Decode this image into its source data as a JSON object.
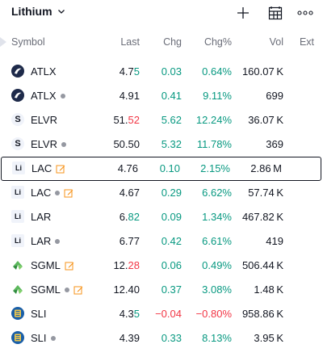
{
  "header": {
    "title": "Lithium",
    "icons": [
      "plus-icon",
      "grid-icon",
      "more-icon"
    ]
  },
  "columns": {
    "symbol": "Symbol",
    "last": "Last",
    "chg": "Chg",
    "chgp": "Chg%",
    "vol": "Vol",
    "ext": "Ext"
  },
  "rows": [
    {
      "symbol": "ATLX",
      "logo": "ATLX",
      "dot": false,
      "edit": false,
      "last_main": "4.7",
      "last_tick": "5",
      "tick": "up",
      "chg": "0.03",
      "chgp": "0.64%",
      "vol": "160.07 K",
      "dir": "pos"
    },
    {
      "symbol": "ATLX",
      "logo": "ATLX",
      "dot": true,
      "edit": false,
      "last_main": "4.91",
      "last_tick": "",
      "tick": "",
      "chg": "0.41",
      "chgp": "9.11%",
      "vol": "699",
      "dir": "pos"
    },
    {
      "symbol": "ELVR",
      "logo": "S",
      "dot": false,
      "edit": false,
      "last_main": "51.",
      "last_tick": "52",
      "tick": "dn",
      "chg": "5.62",
      "chgp": "12.24%",
      "vol": "36.07 K",
      "dir": "pos"
    },
    {
      "symbol": "ELVR",
      "logo": "S",
      "dot": true,
      "edit": false,
      "last_main": "50.50",
      "last_tick": "",
      "tick": "",
      "chg": "5.32",
      "chgp": "11.78%",
      "vol": "369",
      "dir": "pos"
    },
    {
      "symbol": "LAC",
      "logo": "Li",
      "dot": false,
      "edit": true,
      "last_main": "4.76",
      "last_tick": "",
      "tick": "",
      "chg": "0.10",
      "chgp": "2.15%",
      "vol": "2.86 M",
      "dir": "pos",
      "selected": true
    },
    {
      "symbol": "LAC",
      "logo": "Li",
      "dot": true,
      "edit": true,
      "last_main": "4.67",
      "last_tick": "",
      "tick": "",
      "chg": "0.29",
      "chgp": "6.62%",
      "vol": "57.74 K",
      "dir": "pos"
    },
    {
      "symbol": "LAR",
      "logo": "Li",
      "dot": false,
      "edit": false,
      "last_main": "6.",
      "last_tick": "82",
      "tick": "up",
      "chg": "0.09",
      "chgp": "1.34%",
      "vol": "467.82 K",
      "dir": "pos"
    },
    {
      "symbol": "LAR",
      "logo": "Li",
      "dot": true,
      "edit": false,
      "last_main": "6.77",
      "last_tick": "",
      "tick": "",
      "chg": "0.42",
      "chgp": "6.61%",
      "vol": "419",
      "dir": "pos"
    },
    {
      "symbol": "SGML",
      "logo": "SGML",
      "dot": false,
      "edit": true,
      "last_main": "12.",
      "last_tick": "28",
      "tick": "dn",
      "chg": "0.06",
      "chgp": "0.49%",
      "vol": "506.44 K",
      "dir": "pos"
    },
    {
      "symbol": "SGML",
      "logo": "SGML",
      "dot": true,
      "edit": true,
      "last_main": "12.40",
      "last_tick": "",
      "tick": "",
      "chg": "0.37",
      "chgp": "3.08%",
      "vol": "1.48 K",
      "dir": "pos"
    },
    {
      "symbol": "SLI",
      "logo": "SLI",
      "dot": false,
      "edit": false,
      "last_main": "4.3",
      "last_tick": "5",
      "tick": "up",
      "chg": "−0.04",
      "chgp": "−0.80%",
      "vol": "958.86 K",
      "dir": "neg"
    },
    {
      "symbol": "SLI",
      "logo": "SLI",
      "dot": true,
      "edit": false,
      "last_main": "4.39",
      "last_tick": "",
      "tick": "",
      "chg": "0.33",
      "chgp": "8.13%",
      "vol": "3.95 K",
      "dir": "pos"
    }
  ],
  "colors": {
    "positive": "#089981",
    "negative": "#f23645",
    "text": "#131722",
    "muted": "#6a6d78",
    "edit_icon": "#f7931a"
  }
}
